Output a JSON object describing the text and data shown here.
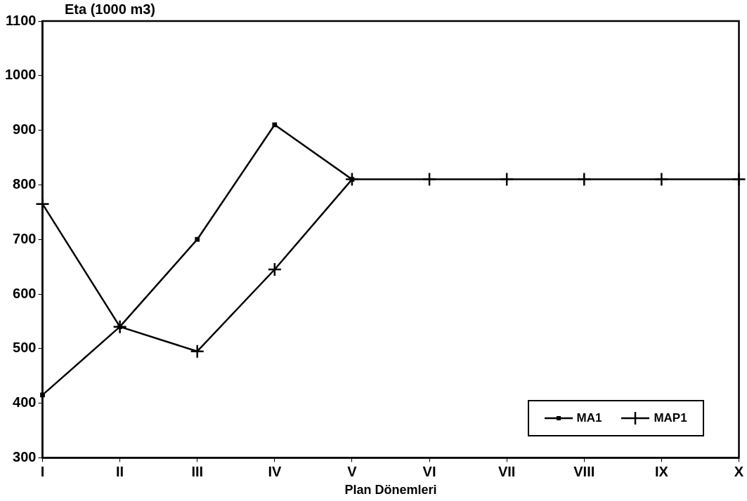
{
  "chart_data": {
    "type": "line",
    "xlabel": "Plan Dönemleri",
    "ylabel": "Eta (1000 m3)",
    "categories": [
      "I",
      "II",
      "III",
      "IV",
      "V",
      "VI",
      "VII",
      "VIII",
      "IX",
      "X"
    ],
    "series": [
      {
        "name": "MA1",
        "color": "#000000",
        "marker": "square",
        "values": [
          415,
          540,
          700,
          910,
          810,
          null,
          null,
          null,
          null,
          null
        ]
      },
      {
        "name": "MAP1",
        "color": "#000000",
        "marker": "cross",
        "values": [
          765,
          540,
          495,
          645,
          810,
          810,
          810,
          810,
          810,
          810
        ]
      }
    ],
    "ylim": [
      300,
      1100
    ],
    "yticks": [
      300,
      400,
      500,
      600,
      700,
      800,
      900,
      1000,
      1100
    ],
    "grid": false,
    "legend": "bottom right"
  }
}
